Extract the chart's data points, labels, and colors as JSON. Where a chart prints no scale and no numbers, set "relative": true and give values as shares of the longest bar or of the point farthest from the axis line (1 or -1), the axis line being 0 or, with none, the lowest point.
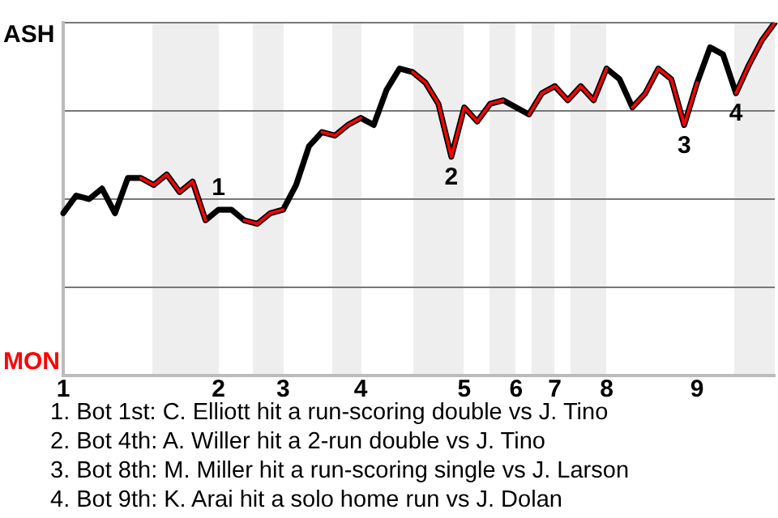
{
  "chart_data": {
    "type": "line",
    "relative": true,
    "categories": [
      "1",
      null,
      null,
      null,
      null,
      null,
      null,
      null,
      null,
      null,
      null,
      null,
      "2",
      null,
      null,
      null,
      null,
      "3",
      null,
      null,
      null,
      null,
      null,
      "4",
      null,
      null,
      null,
      null,
      null,
      null,
      null,
      "5",
      null,
      null,
      null,
      "6",
      null,
      null,
      "7",
      null,
      null,
      null,
      "8",
      null,
      null,
      null,
      null,
      null,
      null,
      "9",
      null,
      null,
      null,
      null,
      null,
      null
    ],
    "series": [
      {
        "color": "#000000",
        "values": [
          0.46,
          0.51,
          0.5,
          0.53,
          0.46,
          0.56,
          0.56,
          0.54,
          0.57,
          0.52,
          0.55,
          0.44,
          0.47,
          0.47,
          0.44,
          0.43,
          0.46,
          0.47,
          0.54,
          0.65,
          0.69,
          0.68,
          0.71,
          0.73,
          0.71,
          0.81,
          0.87,
          0.86,
          0.83,
          0.77,
          0.62,
          0.76,
          0.72,
          0.77,
          0.78,
          0.76,
          0.74,
          0.8,
          0.82,
          0.78,
          0.82,
          0.78,
          0.87,
          0.84,
          0.76,
          0.8,
          0.87,
          0.84,
          0.71,
          0.83,
          0.93,
          0.91,
          0.8,
          0.88,
          0.95,
          1.0
        ]
      },
      {
        "color": "#ff0000",
        "values": [
          null,
          null,
          null,
          null,
          null,
          null,
          0.56,
          0.54,
          0.57,
          0.52,
          0.55,
          0.44,
          null,
          null,
          0.44,
          0.43,
          0.46,
          0.47,
          null,
          null,
          0.69,
          0.68,
          0.71,
          0.73,
          null,
          null,
          null,
          0.86,
          0.83,
          0.77,
          0.62,
          0.76,
          0.72,
          0.77,
          0.78,
          null,
          0.74,
          0.8,
          0.82,
          0.78,
          0.82,
          0.78,
          0.87,
          null,
          0.76,
          0.8,
          0.87,
          0.84,
          0.71,
          0.83,
          null,
          null,
          0.8,
          0.88,
          0.95,
          1.0
        ]
      }
    ],
    "grid": "y",
    "annotations": [
      {
        "text": "1",
        "y": 0.47
      },
      {
        "text": "2",
        "y": 0.62
      },
      {
        "text": "3",
        "y": 0.71
      },
      {
        "text": "4",
        "y": 0.8
      },
      "ASH",
      "MON",
      "1. Bot 1st: C. Elliott hit a run-scoring double vs J. Tino",
      "2. Bot 4th: A. Willer hit a 2-run double vs J. Tino",
      "3. Bot 8th: M. Miller hit a run-scoring single vs J. Larson",
      "4. Bot 9th: K. Arai hit a solo home run vs J. Dolan"
    ]
  }
}
